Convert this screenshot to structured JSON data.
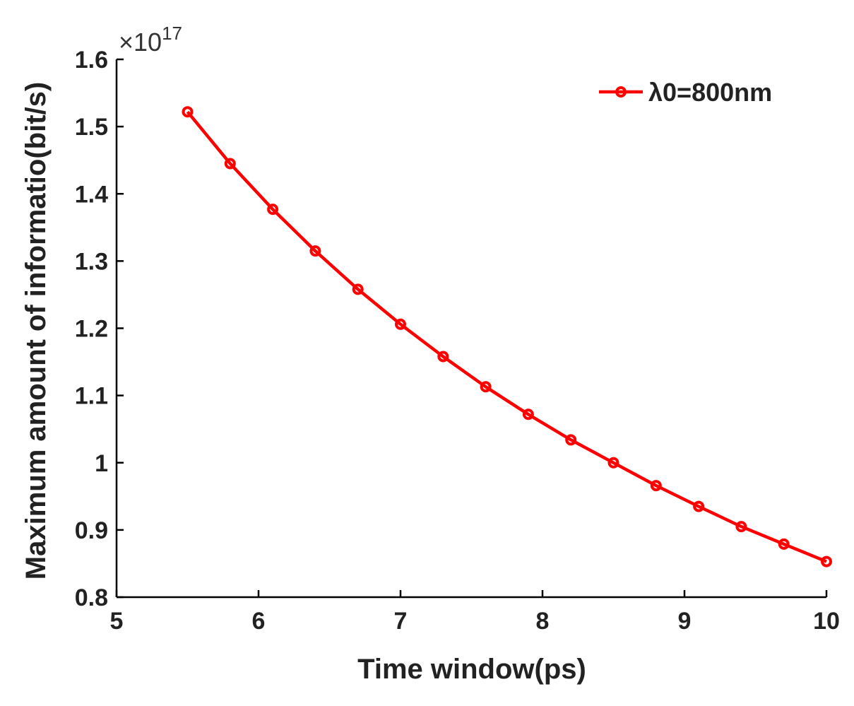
{
  "chart_data": {
    "type": "line",
    "xlabel": "Time window(ps)",
    "ylabel": "Maximum amount of informatio(bit/s)",
    "xlim": [
      5,
      10
    ],
    "ylim": [
      0.8,
      1.6
    ],
    "xticks": [
      5,
      6,
      7,
      8,
      9,
      10
    ],
    "xtick_labels": [
      "5",
      "6",
      "7",
      "8",
      "9",
      "10"
    ],
    "yticks": [
      0.8,
      0.9,
      1.0,
      1.1,
      1.2,
      1.3,
      1.4,
      1.5,
      1.6
    ],
    "ytick_labels": [
      "0.8",
      "0.9",
      "1",
      "1.1",
      "1.2",
      "1.3",
      "1.4",
      "1.5",
      "1.6"
    ],
    "y_exponent": {
      "base": "×10",
      "power": "17"
    },
    "grid": false,
    "legend_position": "top-right",
    "series": [
      {
        "name": "λ0=800nm",
        "color": "#ff0000",
        "marker": "circle",
        "x": [
          5.5,
          5.8,
          6.1,
          6.4,
          6.7,
          7.0,
          7.3,
          7.6,
          7.9,
          8.2,
          8.5,
          8.8,
          9.1,
          9.4,
          9.7,
          10.0
        ],
        "y": [
          1.522,
          1.445,
          1.377,
          1.315,
          1.258,
          1.206,
          1.158,
          1.113,
          1.072,
          1.034,
          1.0,
          0.966,
          0.935,
          0.905,
          0.879,
          0.853
        ]
      }
    ]
  }
}
